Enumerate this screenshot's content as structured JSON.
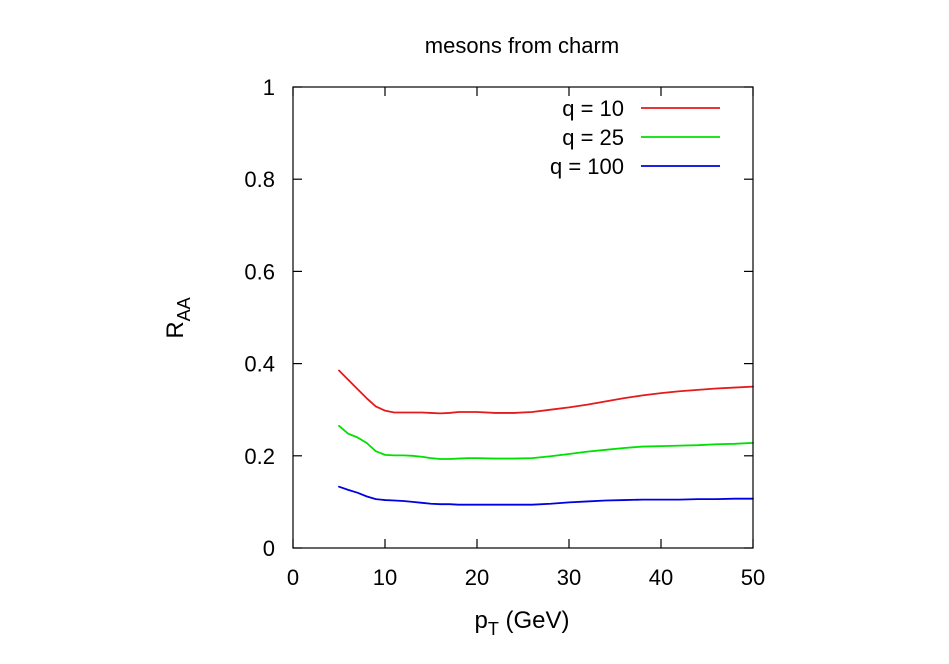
{
  "chart_data": {
    "type": "line",
    "title": "mesons from charm",
    "xlabel": "p",
    "xlabel_sub": "T",
    "xlabel_suffix": " (GeV)",
    "ylabel": "R",
    "ylabel_sub": "AA",
    "xlim": [
      0,
      50
    ],
    "ylim": [
      0,
      1
    ],
    "xticks": [
      0,
      10,
      20,
      30,
      40,
      50
    ],
    "xtick_labels": [
      "0",
      "10",
      "20",
      "30",
      "40",
      "50"
    ],
    "yticks": [
      0,
      0.2,
      0.4,
      0.6,
      0.8,
      1
    ],
    "ytick_labels": [
      "0",
      "0.2",
      "0.4",
      "0.6",
      "0.8",
      "1"
    ],
    "grid": false,
    "legend_position": "top-right",
    "series": [
      {
        "name": "q = 10",
        "color": "#e41a1c",
        "x": [
          5,
          6,
          7,
          8,
          9,
          10,
          11,
          12,
          13,
          14,
          15,
          16,
          17,
          18,
          19,
          20,
          22,
          24,
          26,
          28,
          30,
          32,
          34,
          36,
          38,
          40,
          42,
          44,
          46,
          48,
          50
        ],
        "y": [
          0.385,
          0.365,
          0.345,
          0.325,
          0.307,
          0.298,
          0.294,
          0.294,
          0.294,
          0.294,
          0.293,
          0.292,
          0.293,
          0.295,
          0.295,
          0.295,
          0.293,
          0.293,
          0.295,
          0.3,
          0.305,
          0.311,
          0.318,
          0.325,
          0.331,
          0.336,
          0.34,
          0.343,
          0.346,
          0.348,
          0.35
        ]
      },
      {
        "name": "q = 25",
        "color": "#00e000",
        "x": [
          5,
          6,
          7,
          8,
          9,
          10,
          11,
          12,
          13,
          14,
          15,
          16,
          17,
          18,
          19,
          20,
          22,
          24,
          26,
          28,
          30,
          32,
          34,
          36,
          38,
          40,
          42,
          44,
          46,
          48,
          50
        ],
        "y": [
          0.265,
          0.248,
          0.24,
          0.228,
          0.21,
          0.202,
          0.201,
          0.201,
          0.2,
          0.198,
          0.195,
          0.193,
          0.193,
          0.194,
          0.195,
          0.195,
          0.194,
          0.194,
          0.195,
          0.199,
          0.204,
          0.209,
          0.213,
          0.217,
          0.22,
          0.221,
          0.222,
          0.223,
          0.225,
          0.226,
          0.228
        ]
      },
      {
        "name": "q = 100",
        "color": "#0000e0",
        "x": [
          5,
          6,
          7,
          8,
          9,
          10,
          11,
          12,
          13,
          14,
          15,
          16,
          17,
          18,
          19,
          20,
          22,
          24,
          26,
          28,
          30,
          32,
          34,
          36,
          38,
          40,
          42,
          44,
          46,
          48,
          50
        ],
        "y": [
          0.133,
          0.126,
          0.12,
          0.112,
          0.106,
          0.104,
          0.103,
          0.102,
          0.1,
          0.098,
          0.096,
          0.095,
          0.095,
          0.094,
          0.094,
          0.094,
          0.094,
          0.094,
          0.094,
          0.096,
          0.099,
          0.101,
          0.103,
          0.104,
          0.105,
          0.105,
          0.105,
          0.106,
          0.106,
          0.107,
          0.107
        ]
      }
    ]
  }
}
